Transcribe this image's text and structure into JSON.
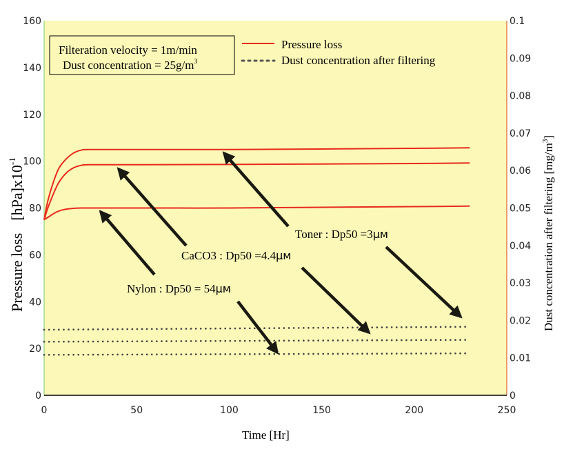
{
  "chart_data": {
    "type": "line",
    "x_axis": {
      "label": "Time [Hr]",
      "range": [
        0,
        250
      ],
      "ticks": [
        0,
        50,
        100,
        150,
        200,
        250
      ]
    },
    "y_axis_left": {
      "label": "Pressure loss",
      "unit_prefix": "[hPa]x10",
      "unit_exponent": "-1",
      "range": [
        0,
        160
      ],
      "ticks": [
        0,
        20,
        40,
        60,
        80,
        100,
        120,
        140,
        160
      ]
    },
    "y_axis_right": {
      "label": "Dust concentration after filtering [mg/m",
      "label_superscript": "3",
      "label_close": "]",
      "range": [
        0,
        0.1
      ],
      "ticks": [
        "0",
        "0.01",
        "0.02",
        "0.03",
        "0.04",
        "0.05",
        "0.06",
        "0.07",
        "0.08",
        "0.09",
        "0.1"
      ]
    },
    "conditions_box": {
      "line1": "Filteration velocity = 1m/min",
      "line2_prefix": "Dust concentration = 25g/m",
      "line2_sup": "3"
    },
    "legend": [
      {
        "label": "Pressure loss",
        "style": "solid",
        "color": "#e82a1c"
      },
      {
        "label": "Dust concentration after filtering",
        "style": "dotted",
        "color": "#555555"
      }
    ],
    "series": [
      {
        "name": "Toner : Dp50 =3μm",
        "pressure_loss": {
          "x": [
            0,
            2,
            5,
            8,
            12,
            16,
            20,
            25,
            50,
            100,
            150,
            200,
            230
          ],
          "y": [
            75,
            83,
            91,
            97,
            101,
            103.5,
            104.7,
            105,
            105,
            105,
            105.2,
            105.5,
            105.7
          ]
        },
        "dust_concentration": {
          "x": [
            0,
            230
          ],
          "y": [
            0.0175,
            0.0183
          ]
        }
      },
      {
        "name": "CaCO3 : Dp50 =4.4μm",
        "pressure_loss": {
          "x": [
            0,
            2,
            5,
            8,
            12,
            16,
            20,
            25,
            50,
            100,
            150,
            200,
            230
          ],
          "y": [
            75,
            80,
            86,
            91,
            95,
            97.2,
            98.2,
            98.5,
            98.5,
            98.6,
            98.8,
            99,
            99.2
          ]
        },
        "dust_concentration": {
          "x": [
            0,
            230
          ],
          "y": [
            0.0143,
            0.0148
          ]
        }
      },
      {
        "name": "Nylon : Dp50 = 54μm",
        "pressure_loss": {
          "x": [
            0,
            3,
            6,
            10,
            15,
            20,
            25,
            50,
            100,
            150,
            200,
            230
          ],
          "y": [
            75,
            76.5,
            78,
            79.2,
            79.8,
            80,
            80,
            80,
            80,
            80.3,
            80.6,
            80.8
          ]
        },
        "dust_concentration": {
          "x": [
            0,
            230
          ],
          "y": [
            0.0108,
            0.0112
          ]
        }
      }
    ],
    "annotations": [
      {
        "series_index": 0,
        "label_prefix": "Toner : Dp50 =3",
        "unit": "μм"
      },
      {
        "series_index": 1,
        "label_prefix": "CaCO3 : Dp50 =4.4",
        "unit": "μм"
      },
      {
        "series_index": 2,
        "label_prefix": "Nylon : Dp50 = 54",
        "unit": "μм"
      }
    ],
    "grid": false,
    "background_color": "#fbf8b8",
    "line_color": "#e82a1c",
    "arrow_color": "#1a1a12"
  }
}
